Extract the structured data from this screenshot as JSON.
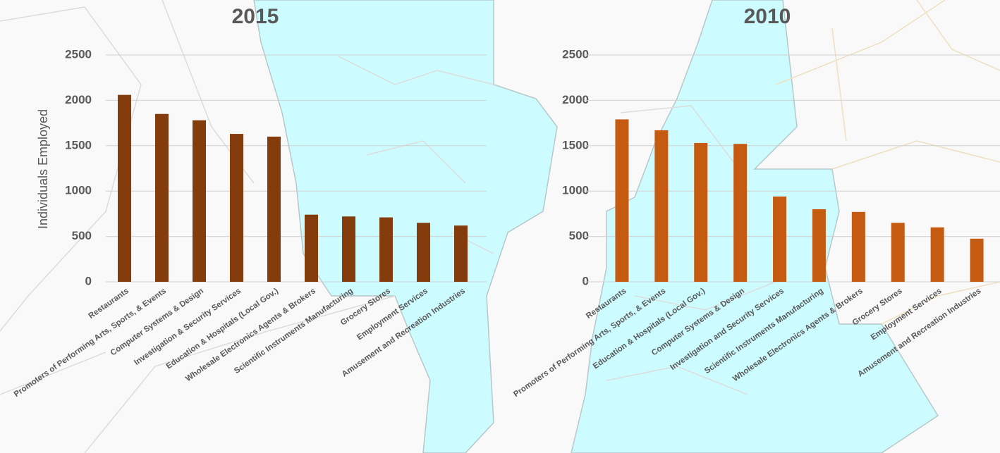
{
  "chart_data": [
    {
      "type": "bar",
      "title": "2015",
      "y_label": "Individuals Employed",
      "categories": [
        "Restaurants",
        "Promoters of Performing Arts, Sports, & Events",
        "Computer Systems & Design",
        "Investigation & Security Services",
        "Education & Hospitals (Local Gov.)",
        "Wholesale Electronics Agents & Brokers",
        "Scientific Instruments Manufacturing",
        "Grocery Stores",
        "Employment Services",
        "Amusement and Recreation Industries"
      ],
      "values": [
        2060,
        1850,
        1780,
        1630,
        1600,
        740,
        720,
        710,
        650,
        620
      ],
      "color": "#843c0c",
      "ylim": [
        0,
        2500
      ],
      "yticks": [
        0,
        500,
        1000,
        1500,
        2000,
        2500
      ],
      "grid": true
    },
    {
      "type": "bar",
      "title": "2010",
      "categories": [
        "Restaurants",
        "Promoters of Performing Arts, Sports, & Events",
        "Education & Hospitals (Local Gov.)",
        "Computer Systems & Design",
        "Investigation and Security Services",
        "Scientific Instruments Manufacturing",
        "Wholesale Electronics Agents & Brokers",
        "Grocery Stores",
        "Employment Services",
        "Amusement and Recreation Industries"
      ],
      "values": [
        1790,
        1670,
        1530,
        1520,
        940,
        800,
        770,
        650,
        600,
        475
      ],
      "color": "#c55a11",
      "ylim": [
        0,
        2500
      ],
      "yticks": [
        0,
        500,
        1000,
        1500,
        2000,
        2500
      ],
      "grid": true
    }
  ]
}
